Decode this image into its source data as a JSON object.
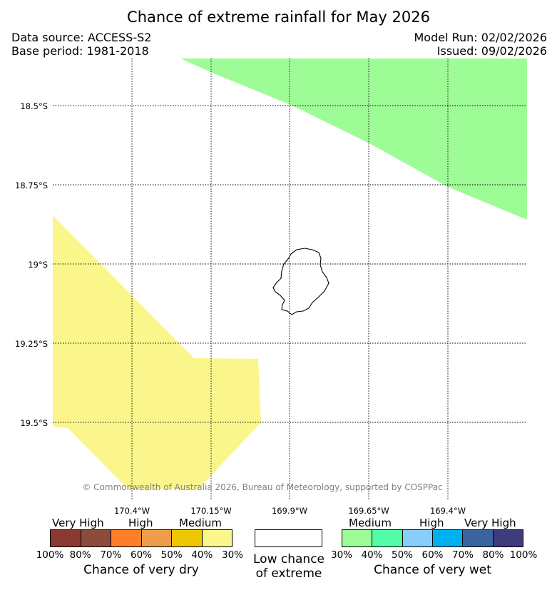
{
  "title": "Chance of extreme rainfall for May 2026",
  "data_source": "Data source: ACCESS-S2",
  "base_period": "Base period: 1981-2018",
  "model_run": "Model Run: 02/02/2026",
  "issued": "Issued: 09/02/2026",
  "latitude_labels": [
    "18.5°S",
    "18.75°S",
    "19°S",
    "19.25°S",
    "19.5°S"
  ],
  "longitude_labels": [
    "170.4°W",
    "170.15°W",
    "169.9°W",
    "169.65°W",
    "169.4°W"
  ],
  "copyright": "© Commonwealth of Australia 2026, Bureau of Meteorology, supported by COSPPac",
  "regions": {
    "wet_medium_color": "#9efc96",
    "dry_medium_color": "#fbf68c"
  },
  "legend": {
    "dry": {
      "group_labels": [
        "Very High",
        "High",
        "Medium"
      ],
      "colors": [
        "#8b3a32",
        "#8c4b3b",
        "#fd7f2a",
        "#ed9d4b",
        "#eec703",
        "#fbf68c"
      ],
      "ticks": [
        "100%",
        "80%",
        "70%",
        "60%",
        "50%",
        "40%",
        "30%"
      ],
      "caption": "Chance of very dry"
    },
    "low": {
      "caption_line1": "Low chance",
      "caption_line2": "of extreme"
    },
    "wet": {
      "group_labels": [
        "Medium",
        "High",
        "Very High"
      ],
      "colors": [
        "#9efc96",
        "#55fca6",
        "#88cefb",
        "#00b0f0",
        "#3a64a0",
        "#3e3c7a"
      ],
      "ticks": [
        "30%",
        "40%",
        "50%",
        "60%",
        "70%",
        "80%",
        "100%"
      ],
      "caption": "Chance of very wet"
    }
  }
}
